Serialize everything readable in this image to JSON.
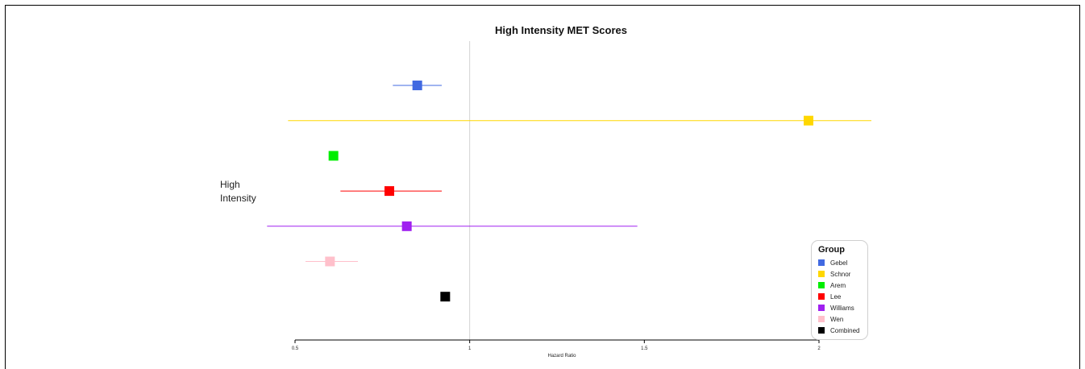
{
  "chart_data": {
    "type": "scatter",
    "title": "High Intensity MET Scores",
    "xlabel": "Hazard Ratio",
    "row_label": [
      "High",
      "Intensity"
    ],
    "xlim": [
      0.5,
      2.15
    ],
    "x_ticks": [
      0.5,
      1,
      1.5,
      2
    ],
    "x_tick_labels": [
      "0.5",
      "1",
      "1.5",
      "2"
    ],
    "reference_line": 1,
    "grid": false,
    "legend": {
      "title": "Group",
      "position": "bottom-right"
    },
    "series": [
      {
        "name": "Gebel",
        "color": "#4169E1",
        "estimate": 0.85,
        "lower": 0.78,
        "upper": 0.92
      },
      {
        "name": "Schnor",
        "color": "#FFD700",
        "estimate": 1.97,
        "lower": 0.48,
        "upper": 2.15
      },
      {
        "name": "Arem",
        "color": "#00EE00",
        "estimate": 0.61,
        "lower": null,
        "upper": null
      },
      {
        "name": "Lee",
        "color": "#FF0000",
        "estimate": 0.77,
        "lower": 0.63,
        "upper": 0.92
      },
      {
        "name": "Williams",
        "color": "#A020F0",
        "estimate": 0.82,
        "lower": 0.42,
        "upper": 1.48
      },
      {
        "name": "Wen",
        "color": "#FFC0CB",
        "estimate": 0.6,
        "lower": 0.53,
        "upper": 0.68
      },
      {
        "name": "Combined",
        "color": "#000000",
        "estimate": 0.93,
        "lower": null,
        "upper": null
      }
    ]
  }
}
